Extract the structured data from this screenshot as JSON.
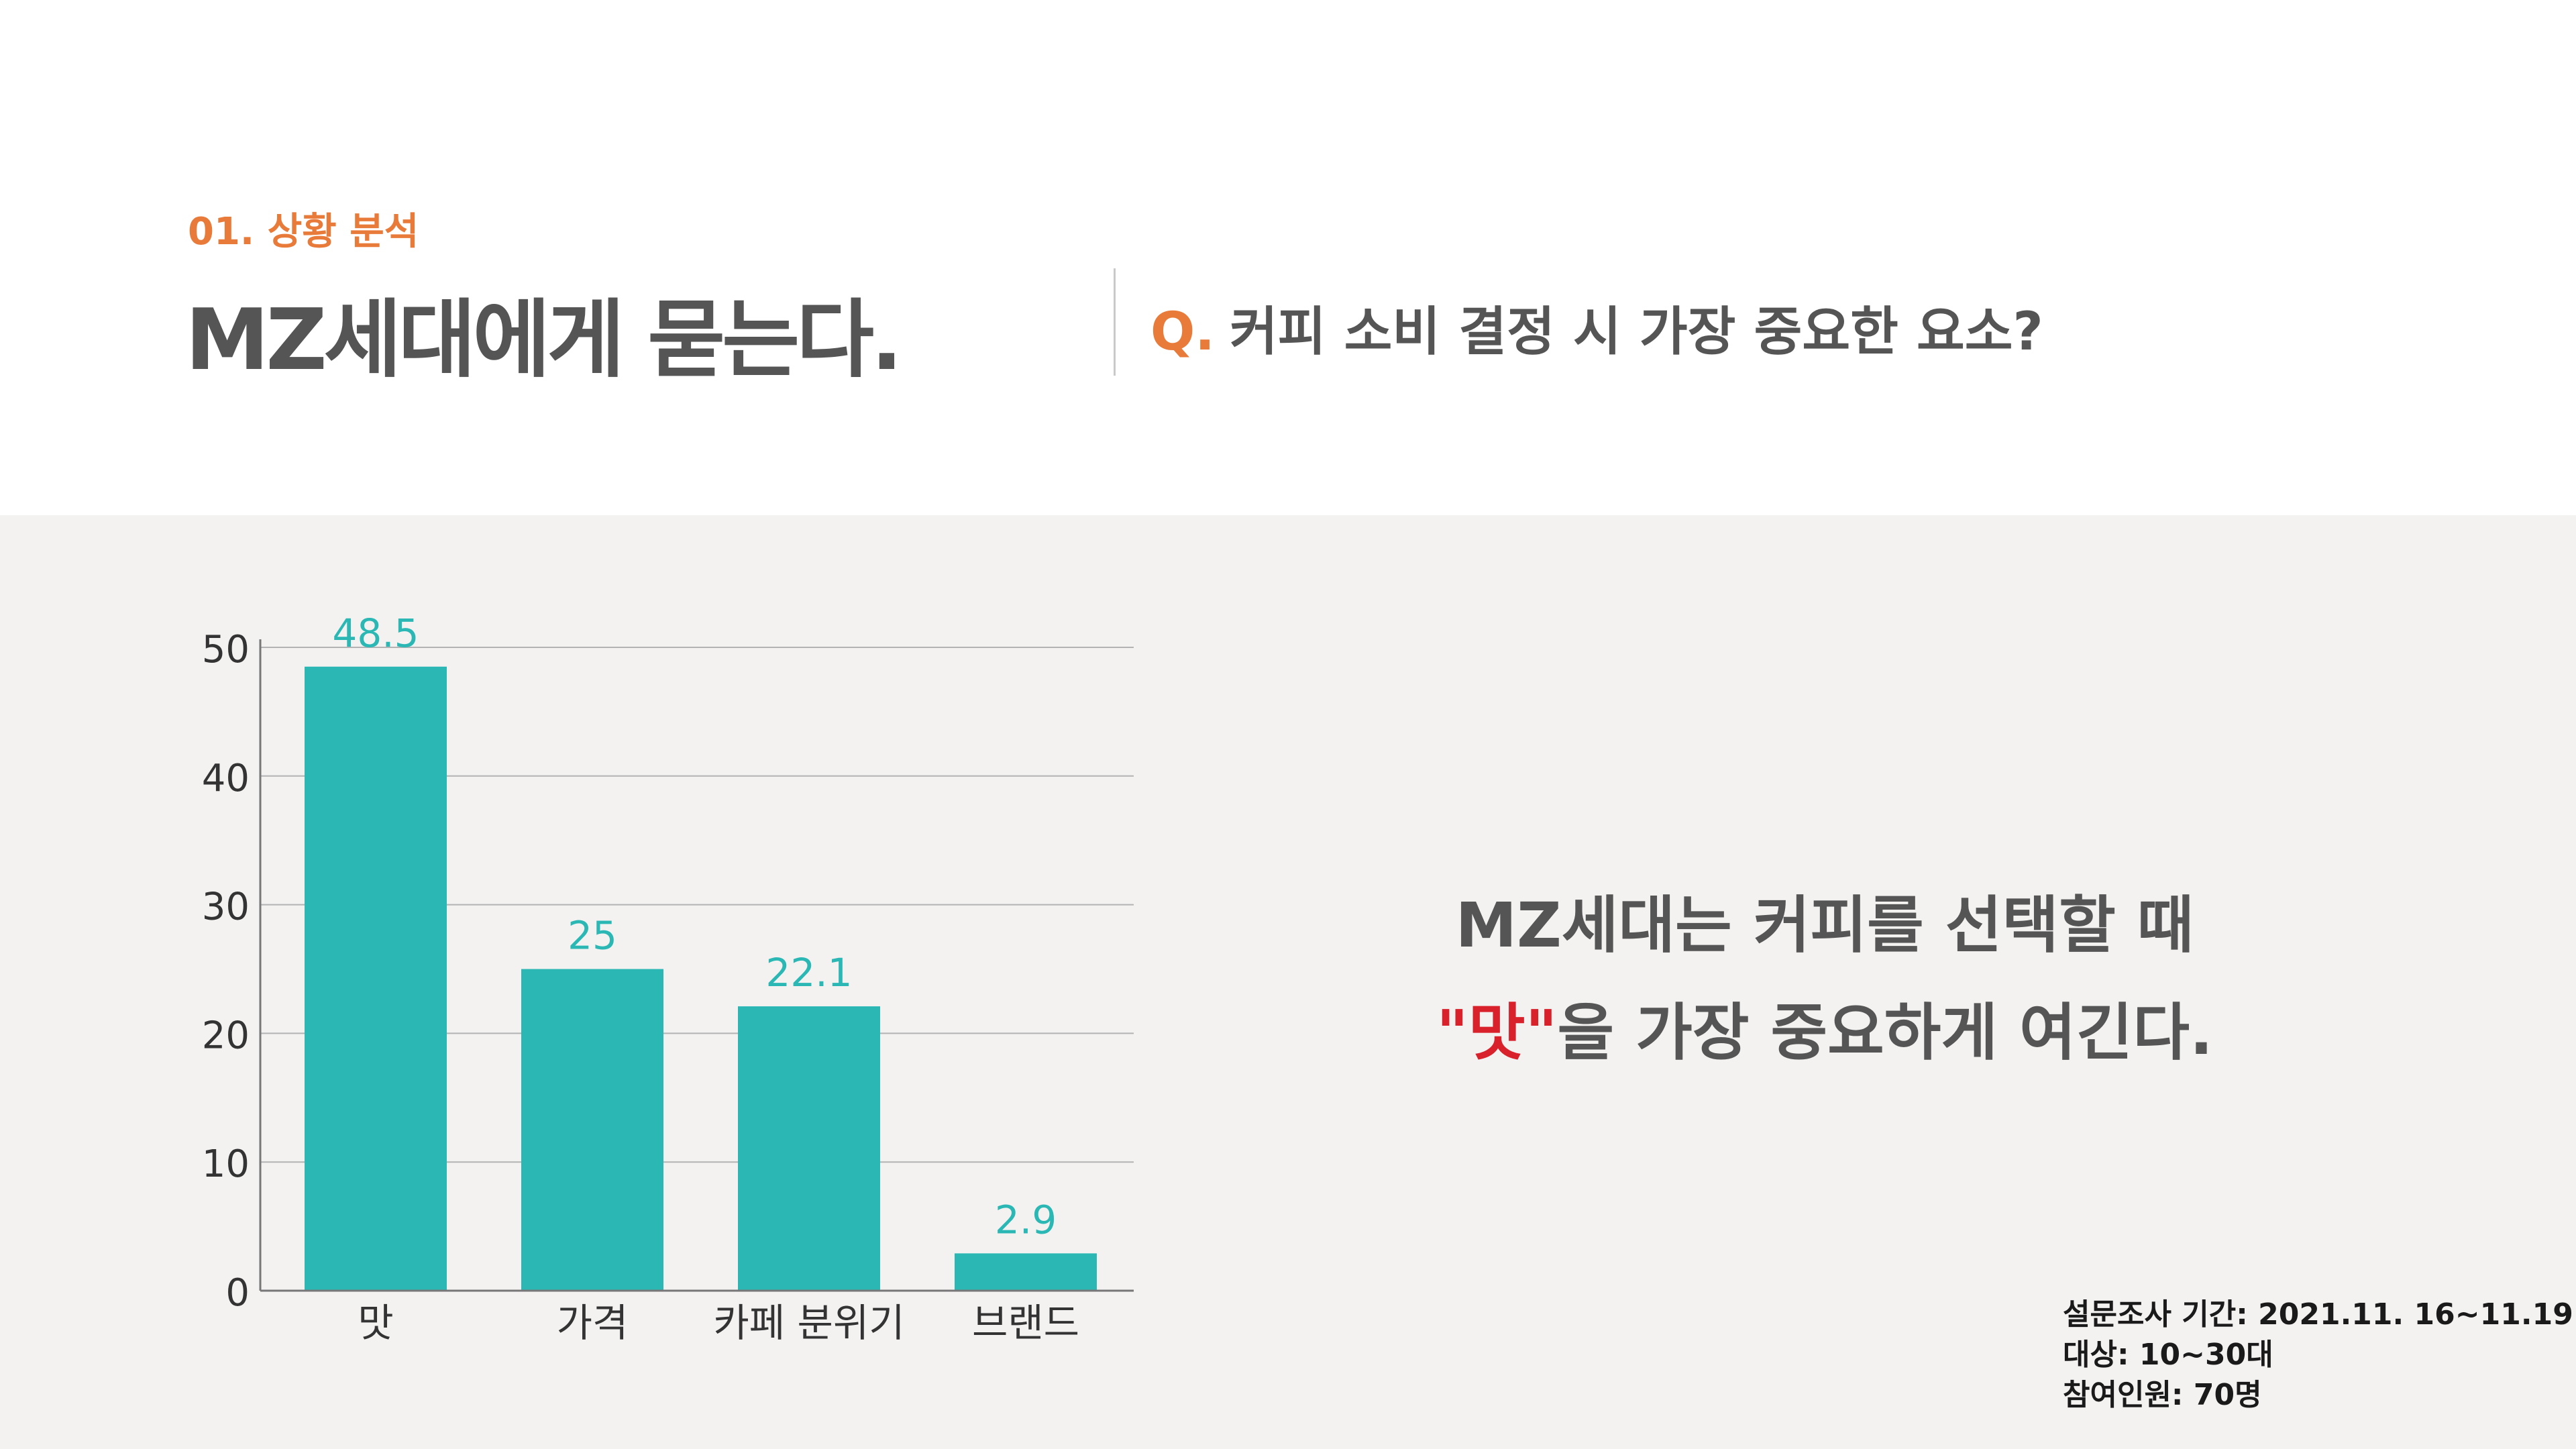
{
  "header": {
    "section_label": "01. 상황 분석",
    "title": "MZ세대에게 묻는다.",
    "question_prefix": "Q.",
    "question": "커피 소비 결정 시 가장 중요한 요소?"
  },
  "colors": {
    "accent": "#e97b3a",
    "bar": "#2bb8b5",
    "emphasis": "#d9212c",
    "title_text": "#555555",
    "panel_background": "#f3f2f1"
  },
  "chart_data": {
    "type": "bar",
    "categories": [
      "맛",
      "가격",
      "카페 분위기",
      "브랜드"
    ],
    "values": [
      48.5,
      25,
      22.1,
      2.9
    ],
    "value_labels": [
      "48.5",
      "25",
      "22.1",
      "2.9"
    ],
    "yticks": [
      0,
      10,
      20,
      30,
      40,
      50
    ],
    "ylim": [
      0,
      50
    ],
    "grid": true,
    "title": "",
    "xlabel": "",
    "ylabel": ""
  },
  "conclusion": {
    "line1": "MZ세대는 커피를 선택할 때",
    "emphasis": "\"맛\"",
    "line2_rest": "을 가장 중요하게 여긴다."
  },
  "survey": {
    "period": "설문조사 기간: 2021.11. 16~11.19",
    "target": "대상: 10~30대",
    "participants": "참여인원: 70명"
  }
}
